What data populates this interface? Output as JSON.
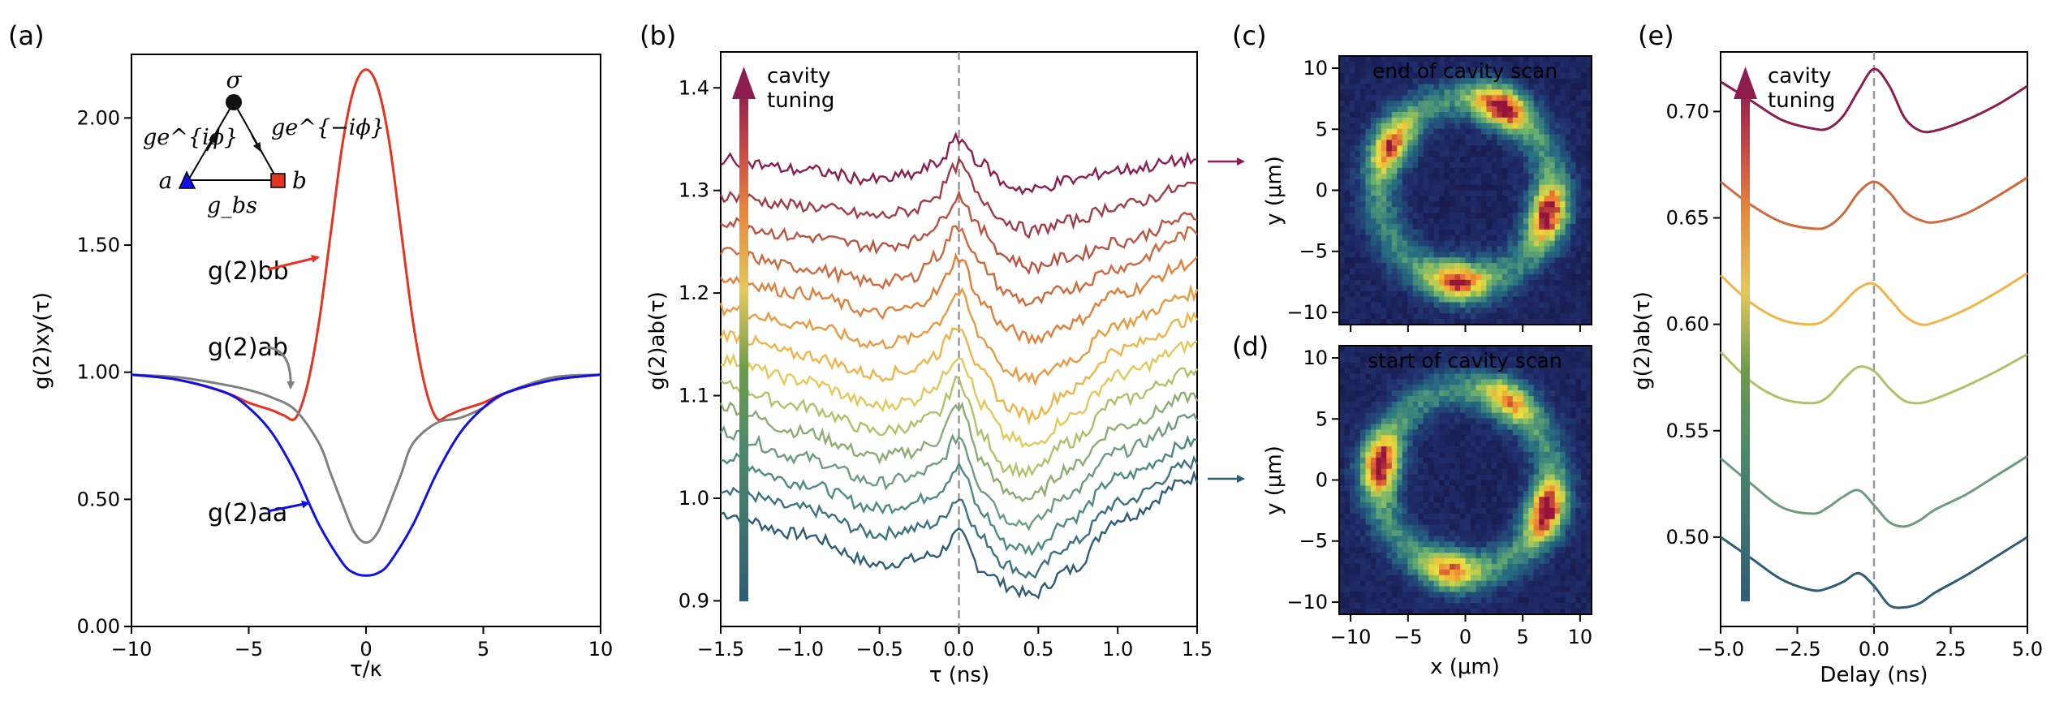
{
  "panels": {
    "a": {
      "label": "(a)",
      "xlabel": "τ/κ",
      "ylabel": "g(2)xy(τ)"
    },
    "b": {
      "label": "(b)",
      "xlabel": "τ (ns)",
      "ylabel": "g(2)ab(τ)",
      "arrow_label_1": "cavity",
      "arrow_label_2": "tuning"
    },
    "c": {
      "label": "(c)",
      "title": "end of cavity scan",
      "ylabel": "y (μm)"
    },
    "d": {
      "label": "(d)",
      "title": "start of cavity scan",
      "ylabel": "y (μm)",
      "xlabel": "x (μm)"
    },
    "e": {
      "label": "(e)",
      "xlabel": "Delay (ns)",
      "ylabel": "g(2)ab(τ)",
      "arrow_label_1": "cavity",
      "arrow_label_2": "tuning"
    }
  },
  "inset": {
    "node_top": "σ",
    "node_left": "a",
    "node_right": "b",
    "edge_left": "ge^{iϕ}",
    "edge_right": "ge^{−iϕ}",
    "edge_bottom": "g_bs"
  },
  "annotations": {
    "bb": "g(2)bb",
    "ab": "g(2)ab",
    "aa": "g(2)aa"
  },
  "colors": {
    "bb": "#e8321e",
    "ab": "#808080",
    "aa": "#1010e8",
    "cb_top": "#8e1d4f",
    "cb_bottom": "#2e5d78"
  },
  "chart_data": [
    {
      "type": "line",
      "panel": "a",
      "xlabel": "τ/κ",
      "ylabel": "g(2)xy(τ)",
      "xlim": [
        -10,
        10
      ],
      "ylim": [
        0,
        2.25
      ],
      "xticks": [
        -10,
        -5,
        0,
        5,
        10
      ],
      "yticks": [
        0.0,
        0.5,
        1.0,
        1.5,
        2.0
      ],
      "ytick_labels": [
        "0.00",
        "0.50",
        "1.00",
        "1.50",
        "2.00"
      ],
      "series": [
        {
          "name": "g(2)bb",
          "color": "#e8321e",
          "x": [
            -10,
            -8,
            -6,
            -5,
            -4,
            -3.5,
            -3,
            -2.5,
            -2,
            -1.5,
            -1,
            -0.5,
            0,
            0.5,
            1,
            1.5,
            2,
            2.5,
            3,
            3.5,
            4,
            5,
            6,
            8,
            10
          ],
          "y": [
            0.99,
            0.97,
            0.92,
            0.88,
            0.85,
            0.83,
            0.82,
            0.95,
            1.2,
            1.55,
            1.9,
            2.12,
            2.19,
            2.12,
            1.9,
            1.55,
            1.2,
            0.95,
            0.82,
            0.83,
            0.85,
            0.88,
            0.92,
            0.97,
            0.99
          ]
        },
        {
          "name": "g(2)ab",
          "color": "#808080",
          "x": [
            -10,
            -8,
            -6,
            -5,
            -4,
            -3,
            -2,
            -1.5,
            -1,
            -0.5,
            0,
            0.5,
            1,
            1.5,
            2,
            3,
            4,
            5,
            6,
            8,
            10
          ],
          "y": [
            0.99,
            0.98,
            0.95,
            0.93,
            0.9,
            0.85,
            0.72,
            0.6,
            0.48,
            0.37,
            0.33,
            0.37,
            0.48,
            0.6,
            0.72,
            0.8,
            0.82,
            0.86,
            0.92,
            0.98,
            0.99
          ]
        },
        {
          "name": "g(2)aa",
          "color": "#1010e8",
          "x": [
            -10,
            -8,
            -6,
            -5,
            -4,
            -3,
            -2,
            -1,
            -0.5,
            0,
            0.5,
            1,
            2,
            3,
            4,
            5,
            6,
            8,
            10
          ],
          "y": [
            0.99,
            0.97,
            0.92,
            0.86,
            0.76,
            0.6,
            0.4,
            0.25,
            0.21,
            0.2,
            0.21,
            0.25,
            0.4,
            0.6,
            0.76,
            0.86,
            0.92,
            0.97,
            0.99
          ]
        }
      ]
    },
    {
      "type": "line",
      "panel": "b",
      "xlabel": "τ (ns)",
      "ylabel": "g(2)ab(τ)",
      "xlim": [
        -1.5,
        1.5
      ],
      "ylim": [
        0.875,
        1.435
      ],
      "xticks": [
        -1.5,
        -1.0,
        -0.5,
        0.0,
        0.5,
        1.0,
        1.5
      ],
      "xtick_labels": [
        "−1.5",
        "−1.0",
        "−0.5",
        "0.0",
        "0.5",
        "1.0",
        "1.5"
      ],
      "yticks": [
        0.9,
        1.0,
        1.1,
        1.2,
        1.3,
        1.4
      ],
      "ytick_labels": [
        "0.9",
        "1.0",
        "1.1",
        "1.2",
        "1.3",
        "1.4"
      ],
      "x": [
        -1.5,
        -1.0,
        -0.5,
        -0.3,
        -0.15,
        0.0,
        0.15,
        0.3,
        0.45,
        0.7,
        1.0,
        1.5
      ],
      "series": [
        {
          "color": "#2e5d78",
          "values": [
            0.985,
            0.965,
            0.935,
            0.94,
            0.945,
            0.965,
            0.93,
            0.915,
            0.905,
            0.93,
            0.98,
            1.02
          ]
        },
        {
          "color": "#3b7381",
          "values": [
            1.01,
            0.99,
            0.965,
            0.97,
            0.975,
            1.0,
            0.96,
            0.935,
            0.925,
            0.955,
            0.995,
            1.035
          ]
        },
        {
          "color": "#4e8a84",
          "values": [
            1.04,
            1.015,
            0.99,
            0.995,
            1.005,
            1.03,
            0.985,
            0.955,
            0.95,
            0.98,
            1.02,
            1.055
          ]
        },
        {
          "color": "#6c9c80",
          "values": [
            1.065,
            1.04,
            1.015,
            1.02,
            1.03,
            1.06,
            1.01,
            0.98,
            0.975,
            1.005,
            1.045,
            1.08
          ]
        },
        {
          "color": "#8cad72",
          "values": [
            1.09,
            1.065,
            1.04,
            1.045,
            1.055,
            1.09,
            1.035,
            1.005,
            1.0,
            1.03,
            1.07,
            1.1
          ]
        },
        {
          "color": "#b3c06a",
          "values": [
            1.11,
            1.09,
            1.065,
            1.07,
            1.08,
            1.115,
            1.06,
            1.03,
            1.025,
            1.055,
            1.095,
            1.125
          ]
        },
        {
          "color": "#e5c85a",
          "values": [
            1.135,
            1.115,
            1.09,
            1.095,
            1.11,
            1.14,
            1.09,
            1.06,
            1.05,
            1.08,
            1.12,
            1.15
          ]
        },
        {
          "color": "#f0b447",
          "values": [
            1.16,
            1.14,
            1.12,
            1.125,
            1.14,
            1.17,
            1.12,
            1.09,
            1.08,
            1.105,
            1.145,
            1.175
          ]
        },
        {
          "color": "#eb9a3e",
          "values": [
            1.185,
            1.17,
            1.15,
            1.155,
            1.17,
            1.2,
            1.155,
            1.125,
            1.115,
            1.135,
            1.17,
            1.2
          ]
        },
        {
          "color": "#e27f3a",
          "values": [
            1.215,
            1.2,
            1.18,
            1.185,
            1.2,
            1.235,
            1.19,
            1.165,
            1.155,
            1.17,
            1.2,
            1.23
          ]
        },
        {
          "color": "#d2693c",
          "values": [
            1.24,
            1.225,
            1.21,
            1.215,
            1.235,
            1.265,
            1.225,
            1.2,
            1.19,
            1.205,
            1.225,
            1.26
          ]
        },
        {
          "color": "#bd5240",
          "values": [
            1.27,
            1.255,
            1.245,
            1.25,
            1.265,
            1.295,
            1.26,
            1.235,
            1.225,
            1.235,
            1.25,
            1.275
          ]
        },
        {
          "color": "#a33b47",
          "values": [
            1.295,
            1.285,
            1.275,
            1.28,
            1.295,
            1.325,
            1.29,
            1.27,
            1.26,
            1.27,
            1.285,
            1.305
          ]
        },
        {
          "color": "#8e1d4f",
          "values": [
            1.33,
            1.32,
            1.31,
            1.315,
            1.325,
            1.35,
            1.325,
            1.305,
            1.3,
            1.31,
            1.32,
            1.33
          ]
        }
      ]
    },
    {
      "type": "heatmap",
      "panel": "c",
      "title": "end of cavity scan",
      "ylabel": "y (μm)",
      "xlim": [
        -11,
        11
      ],
      "ylim": [
        -11,
        11
      ],
      "ticks": [
        -10,
        -5,
        0,
        5,
        10
      ],
      "ring_radius": 7.5,
      "blobs": [
        {
          "angle_deg": 150,
          "strength": 0.8
        },
        {
          "angle_deg": 65,
          "strength": 1.0
        },
        {
          "angle_deg": -15,
          "strength": 0.95
        },
        {
          "angle_deg": -95,
          "strength": 0.9
        }
      ]
    },
    {
      "type": "heatmap",
      "panel": "d",
      "title": "start of cavity scan",
      "xlabel": "x (μm)",
      "ylabel": "y (μm)",
      "xlim": [
        -11,
        11
      ],
      "ylim": [
        -11,
        11
      ],
      "ticks": [
        -10,
        -5,
        0,
        5,
        10
      ],
      "ring_radius": 7.5,
      "blobs": [
        {
          "angle_deg": 170,
          "strength": 1.0
        },
        {
          "angle_deg": 60,
          "strength": 0.7
        },
        {
          "angle_deg": -20,
          "strength": 1.0
        },
        {
          "angle_deg": -100,
          "strength": 0.75
        }
      ]
    },
    {
      "type": "line",
      "panel": "e",
      "xlabel": "Delay (ns)",
      "ylabel": "g(2)ab(τ)",
      "xlim": [
        -5,
        5
      ],
      "ylim": [
        0.458,
        0.728
      ],
      "xticks": [
        -5,
        -2.5,
        0,
        2.5,
        5
      ],
      "xtick_labels": [
        "−5.0",
        "−2.5",
        "0.0",
        "2.5",
        "5.0"
      ],
      "yticks": [
        0.5,
        0.55,
        0.6,
        0.65,
        0.7
      ],
      "ytick_labels": [
        "0.50",
        "0.55",
        "0.60",
        "0.65",
        "0.70"
      ],
      "x": [
        -5,
        -4,
        -3,
        -2,
        -1.5,
        -1,
        -0.5,
        0,
        0.5,
        1,
        1.5,
        2,
        3,
        4,
        5
      ],
      "series": [
        {
          "color": "#2e5d78",
          "values": [
            0.5,
            0.49,
            0.48,
            0.475,
            0.476,
            0.479,
            0.483,
            0.477,
            0.468,
            0.467,
            0.469,
            0.474,
            0.482,
            0.491,
            0.5
          ]
        },
        {
          "color": "#6c9c80",
          "values": [
            0.537,
            0.525,
            0.514,
            0.511,
            0.514,
            0.519,
            0.522,
            0.515,
            0.507,
            0.505,
            0.508,
            0.513,
            0.52,
            0.529,
            0.538
          ]
        },
        {
          "color": "#b3c06a",
          "values": [
            0.587,
            0.573,
            0.565,
            0.563,
            0.566,
            0.574,
            0.58,
            0.578,
            0.57,
            0.564,
            0.563,
            0.565,
            0.571,
            0.578,
            0.586
          ]
        },
        {
          "color": "#f0b447",
          "values": [
            0.623,
            0.61,
            0.602,
            0.6,
            0.603,
            0.61,
            0.617,
            0.619,
            0.612,
            0.604,
            0.6,
            0.601,
            0.607,
            0.615,
            0.624
          ]
        },
        {
          "color": "#d2693c",
          "values": [
            0.667,
            0.656,
            0.648,
            0.645,
            0.646,
            0.652,
            0.662,
            0.667,
            0.662,
            0.653,
            0.649,
            0.648,
            0.652,
            0.66,
            0.669
          ]
        },
        {
          "color": "#8e1d4f",
          "values": [
            0.714,
            0.705,
            0.696,
            0.692,
            0.692,
            0.698,
            0.71,
            0.72,
            0.712,
            0.697,
            0.691,
            0.691,
            0.696,
            0.703,
            0.712
          ]
        }
      ]
    }
  ]
}
